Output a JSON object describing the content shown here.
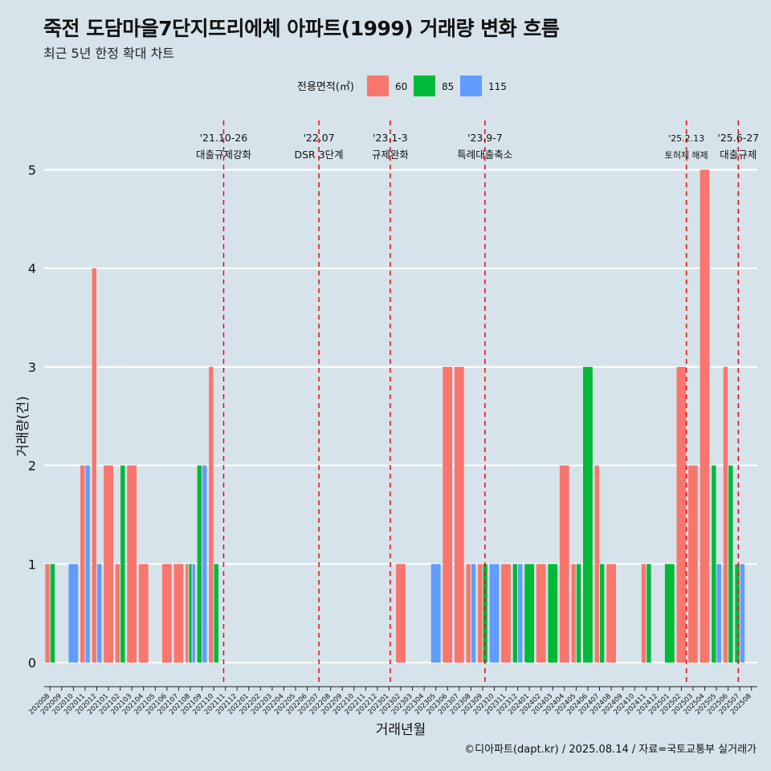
{
  "title": "죽전 도담마을7단지뜨리에체 아파트(1999) 거래량 변화 흐름",
  "subtitle": "최근 5년 한정 확대 차트",
  "caption": "©디아파트(dapt.kr) / 2025.08.14 / 자료=국토교통부 실거래가",
  "colors": {
    "60": "#f8766d",
    "85": "#00ba38",
    "115": "#619cff",
    "vline": "#e8141c",
    "grid": "#ffffff",
    "background": "#d6e3ea"
  },
  "chart_data": {
    "type": "bar",
    "xlabel": "거래년월",
    "ylabel": "거래량(건)",
    "ylim": [
      -0.22,
      5.5
    ],
    "yticks": [
      0,
      1,
      2,
      3,
      4,
      5
    ],
    "legend": {
      "title": "전용면적(㎡)",
      "placement": "top",
      "entries": [
        "60",
        "85",
        "115"
      ]
    },
    "categories": [
      "202008",
      "202009",
      "202010",
      "202011",
      "202012",
      "202101",
      "202102",
      "202103",
      "202104",
      "202105",
      "202106",
      "202107",
      "202108",
      "202109",
      "202110",
      "202111",
      "202112",
      "202201",
      "202202",
      "202203",
      "202204",
      "202205",
      "202206",
      "202207",
      "202208",
      "202209",
      "202210",
      "202211",
      "202212",
      "202301",
      "202302",
      "202303",
      "202304",
      "202305",
      "202306",
      "202307",
      "202308",
      "202309",
      "202310",
      "202311",
      "202312",
      "202401",
      "202402",
      "202403",
      "202404",
      "202405",
      "202406",
      "202407",
      "202408",
      "202409",
      "202410",
      "202411",
      "202412",
      "202501",
      "202502",
      "202503",
      "202504",
      "202505",
      "202506",
      "202507",
      "202508"
    ],
    "series": [
      {
        "name": "60",
        "values": [
          1,
          0,
          0,
          2,
          4,
          2,
          1,
          2,
          1,
          0,
          1,
          1,
          1,
          0,
          3,
          0,
          0,
          0,
          0,
          0,
          0,
          0,
          0,
          0,
          0,
          0,
          0,
          0,
          0,
          0,
          1,
          0,
          0,
          0,
          3,
          3,
          1,
          1,
          0,
          1,
          0,
          0,
          1,
          0,
          2,
          1,
          0,
          2,
          1,
          0,
          0,
          1,
          0,
          0,
          3,
          2,
          5,
          0,
          3,
          0,
          0
        ]
      },
      {
        "name": "85",
        "values": [
          1,
          0,
          0,
          0,
          0,
          0,
          2,
          0,
          0,
          0,
          0,
          0,
          1,
          2,
          1,
          0,
          0,
          0,
          0,
          0,
          0,
          0,
          0,
          0,
          0,
          0,
          0,
          0,
          0,
          0,
          0,
          0,
          0,
          0,
          0,
          0,
          0,
          1,
          0,
          0,
          1,
          1,
          0,
          1,
          0,
          1,
          3,
          1,
          0,
          0,
          0,
          1,
          0,
          1,
          0,
          0,
          0,
          2,
          2,
          1,
          0
        ]
      },
      {
        "name": "115",
        "values": [
          0,
          0,
          1,
          2,
          1,
          0,
          0,
          0,
          0,
          0,
          0,
          0,
          1,
          2,
          0,
          0,
          0,
          0,
          0,
          0,
          0,
          0,
          0,
          0,
          0,
          0,
          0,
          0,
          0,
          0,
          0,
          0,
          0,
          1,
          0,
          0,
          1,
          0,
          1,
          0,
          1,
          0,
          0,
          0,
          0,
          0,
          0,
          0,
          0,
          0,
          0,
          0,
          0,
          0,
          0,
          0,
          0,
          1,
          0,
          1,
          0
        ]
      }
    ],
    "annotations": [
      {
        "x": "202110.85",
        "line1": "'21.10-26",
        "line2": "대출규제강화"
      },
      {
        "x": "202207",
        "line1": "'22.07",
        "line2": "DSR 3단계"
      },
      {
        "x": "202301.1",
        "line1": "'23.1-3",
        "line2": "규제완화"
      },
      {
        "x": "202309.2",
        "line1": "'23.9-7",
        "line2": "특례대출축소"
      },
      {
        "x": "202502.43",
        "line1": "'25.2.13",
        "line2": "토허제 해제"
      },
      {
        "x": "202506.87",
        "line1": "'25.6-27",
        "line2": "대출규제"
      }
    ]
  }
}
